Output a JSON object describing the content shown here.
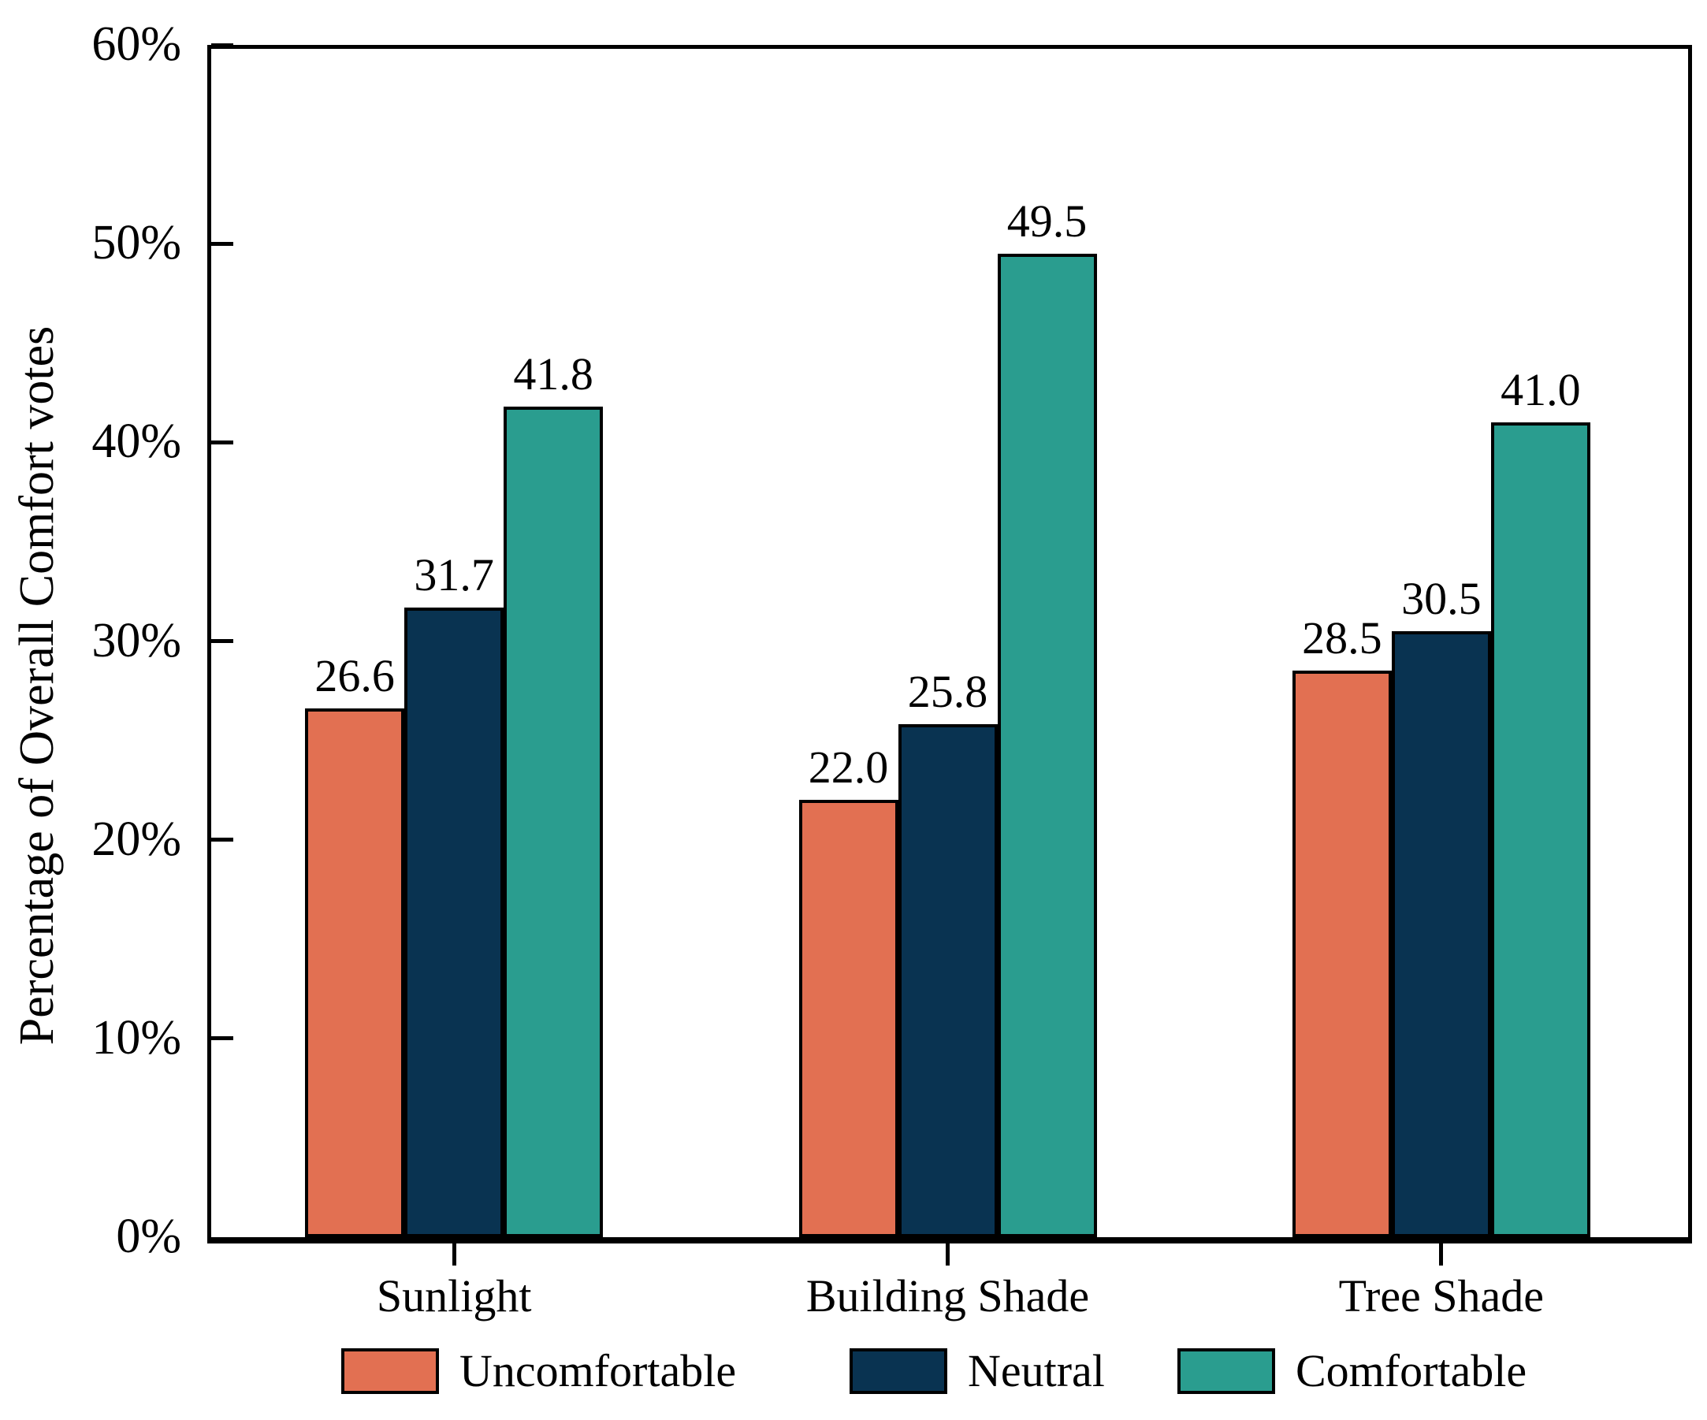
{
  "chart_data": {
    "type": "bar",
    "title": "",
    "ylabel": "Percentage of Overall Comfort votes",
    "categories": [
      "Sunlight",
      "Building Shade",
      "Tree Shade"
    ],
    "series": [
      {
        "name": "Uncomfortable",
        "color": "#E27052",
        "values": [
          26.6,
          22.0,
          28.5
        ]
      },
      {
        "name": "Neutral",
        "color": "#093351",
        "values": [
          31.7,
          25.8,
          30.5
        ]
      },
      {
        "name": "Comfortable",
        "color": "#2A9D8F",
        "values": [
          41.8,
          49.5,
          41.0
        ]
      }
    ],
    "value_label_decimals": 1,
    "ylim": [
      0,
      60
    ],
    "ytick_values": [
      0,
      10,
      20,
      30,
      40,
      50,
      60
    ],
    "ytick_labels": [
      "0%",
      "10%",
      "20%",
      "30%",
      "40%",
      "50%",
      "60%"
    ],
    "grid": false,
    "bar_edge_color": "#000000",
    "legend_position": "bottom"
  }
}
